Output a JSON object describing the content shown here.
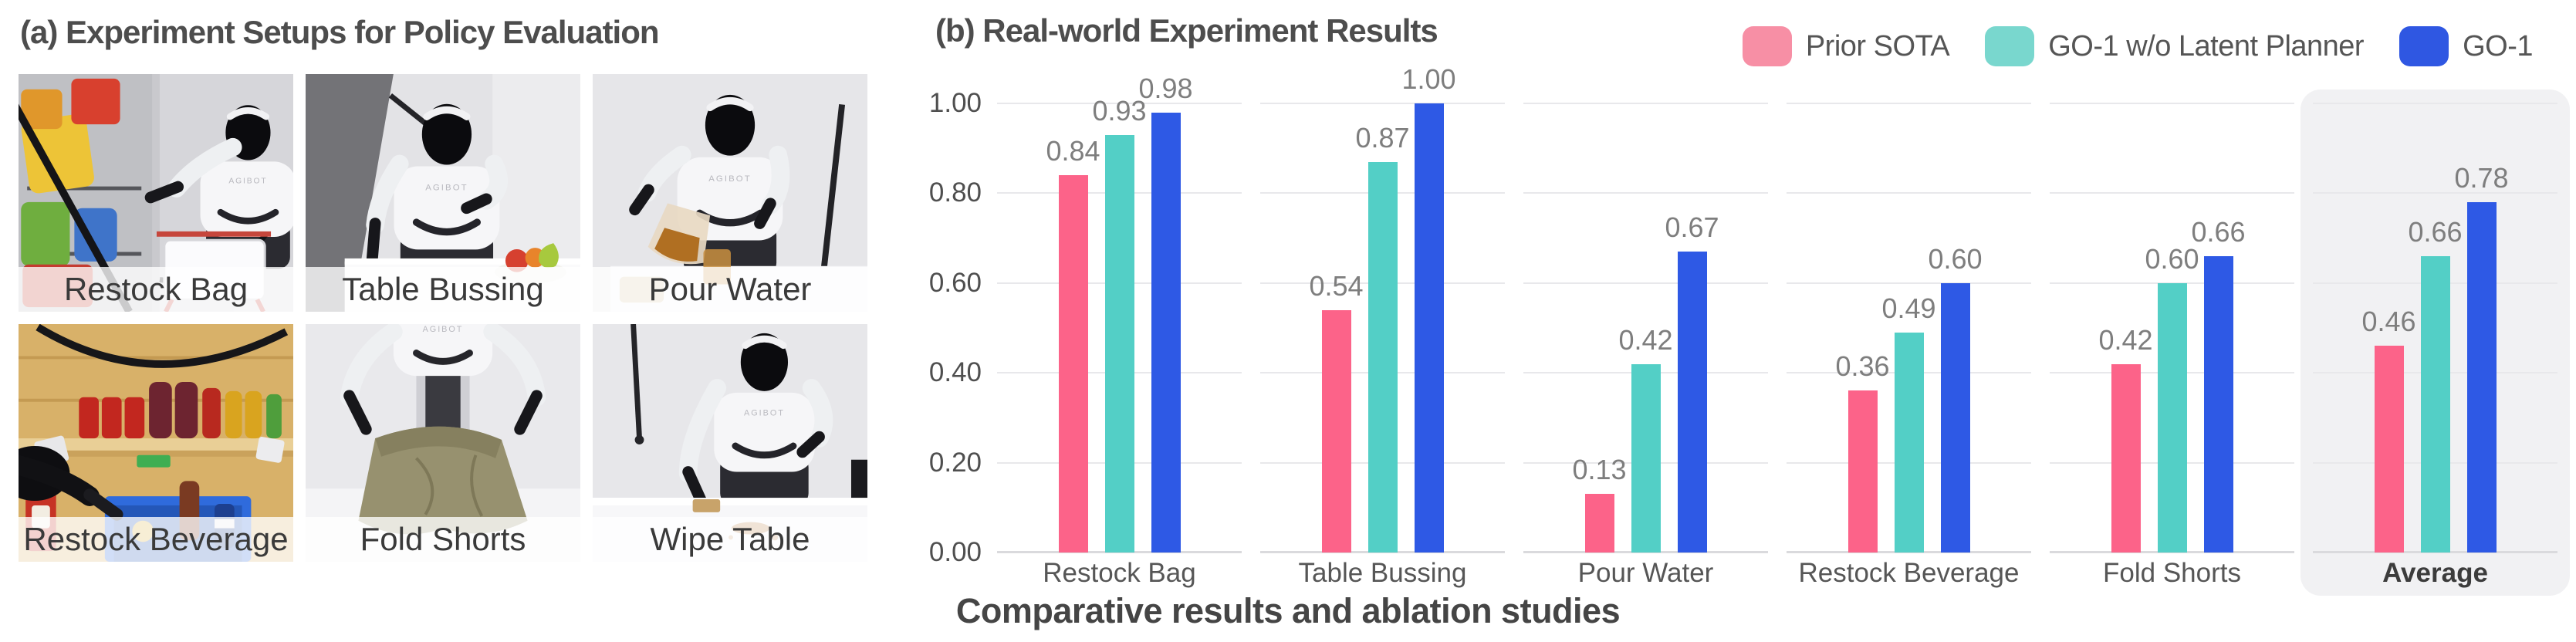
{
  "figure_titles": {
    "left": "(a) Experiment Setups for Policy Evaluation",
    "right": "(b) Real-world Experiment Results"
  },
  "caption": "Comparative results and ablation studies",
  "photos": [
    {
      "id": "restock-bag",
      "label": "Restock Bag"
    },
    {
      "id": "table-bussing",
      "label": "Table Bussing"
    },
    {
      "id": "pour-water",
      "label": "Pour Water"
    },
    {
      "id": "restock-beverage",
      "label": "Restock Beverage"
    },
    {
      "id": "fold-shorts",
      "label": "Fold Shorts"
    },
    {
      "id": "wipe-table",
      "label": "Wipe Table"
    }
  ],
  "chart_data": {
    "type": "bar",
    "title": "(b) Real-world Experiment Results",
    "categories": [
      "Restock Bag",
      "Table Bussing",
      "Pour Water",
      "Restock Beverage",
      "Fold Shorts",
      "Average"
    ],
    "series": [
      {
        "name": "Prior SOTA",
        "color": "#FC6389",
        "legend_color": "#F78FA5",
        "values": [
          0.84,
          0.54,
          0.13,
          0.36,
          0.42,
          0.46
        ]
      },
      {
        "name": "GO-1 w/o Latent Planner",
        "color": "#53CFC6",
        "legend_color": "#79D7CE",
        "values": [
          0.93,
          0.87,
          0.42,
          0.49,
          0.6,
          0.66
        ]
      },
      {
        "name": "GO-1",
        "color": "#2E59E5",
        "legend_color": "#2F57E2",
        "values": [
          0.98,
          1.0,
          0.67,
          0.6,
          0.66,
          0.78
        ]
      }
    ],
    "value_labels": [
      [
        "0.84",
        "0.93",
        "0.98"
      ],
      [
        "0.54",
        "0.87",
        "1.00"
      ],
      [
        "0.13",
        "0.42",
        "0.67"
      ],
      [
        "0.36",
        "0.49",
        "0.60"
      ],
      [
        "0.42",
        "0.60",
        "0.66"
      ],
      [
        "0.46",
        "0.66",
        "0.78"
      ]
    ],
    "yticks": [
      "0.00",
      "0.20",
      "0.40",
      "0.60",
      "0.80",
      "1.00"
    ],
    "ylim": [
      0,
      1
    ],
    "grid": true,
    "grid_color": "#E8E8EB",
    "axis_line_color": "#DADADD",
    "legend_position": "top-right",
    "highlight_category": "Average",
    "highlight_color": "#F1F1F3",
    "value_label_color": "#7e7e7e",
    "xlabel": "",
    "ylabel": ""
  }
}
